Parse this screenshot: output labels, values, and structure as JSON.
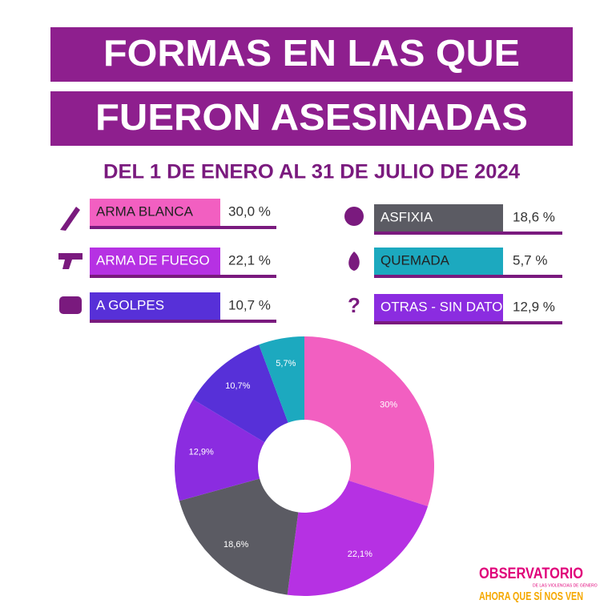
{
  "chart_data": {
    "type": "pie",
    "donut": true,
    "title": [
      "FORMAS EN LAS QUE",
      "FUERON ASESINADAS"
    ],
    "subtitle": "DEL 1 DE ENERO AL 31 DE JULIO DE 2024",
    "categories": [
      "ARMA BLANCA",
      "ARMA DE FUEGO",
      "ASFIXIA",
      "OTRAS - SIN DATOS",
      "A GOLPES",
      "QUEMADA"
    ],
    "values": [
      30,
      22.1,
      18.6,
      12.9,
      10.7,
      5.7
    ],
    "value_labels": [
      "30%",
      "22,1%",
      "18,6%",
      "12,9%",
      "10,7%",
      "5,7%"
    ],
    "legend_value_labels": [
      "30,0 %",
      "22,1 %",
      "18,6 %",
      "12,9 %",
      "10,7 %",
      "5,7 %"
    ],
    "colors": [
      "#f25fc1",
      "#b631e3",
      "#5b5b63",
      "#8b2ce0",
      "#5730d8",
      "#1ca9bf"
    ],
    "logo": {
      "name": "OBSERVATORIO",
      "tagline": "DE LAS VIOLENCIAS DE GÉNERO",
      "slogan": "AHORA QUE SÍ NOS VEN"
    }
  }
}
